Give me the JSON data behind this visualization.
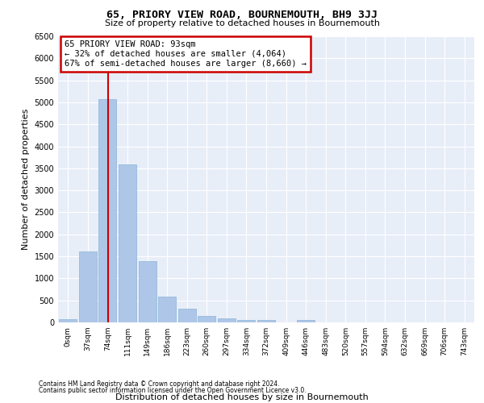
{
  "title": "65, PRIORY VIEW ROAD, BOURNEMOUTH, BH9 3JJ",
  "subtitle": "Size of property relative to detached houses in Bournemouth",
  "xlabel": "Distribution of detached houses by size in Bournemouth",
  "ylabel": "Number of detached properties",
  "footer_line1": "Contains HM Land Registry data © Crown copyright and database right 2024.",
  "footer_line2": "Contains public sector information licensed under the Open Government Licence v3.0.",
  "annotation_line1": "65 PRIORY VIEW ROAD: 93sqm",
  "annotation_line2": "← 32% of detached houses are smaller (4,064)",
  "annotation_line3": "67% of semi-detached houses are larger (8,660) →",
  "property_size_sqm": 93,
  "bar_color": "#aec6e8",
  "bar_edge_color": "#8ab4d8",
  "marker_color": "#cc0000",
  "background_color": "#e8eef8",
  "categories": [
    "0sqm",
    "37sqm",
    "74sqm",
    "111sqm",
    "149sqm",
    "186sqm",
    "223sqm",
    "260sqm",
    "297sqm",
    "334sqm",
    "372sqm",
    "409sqm",
    "446sqm",
    "483sqm",
    "520sqm",
    "557sqm",
    "594sqm",
    "632sqm",
    "669sqm",
    "706sqm",
    "743sqm"
  ],
  "values": [
    75,
    1620,
    5080,
    3580,
    1400,
    590,
    310,
    155,
    90,
    55,
    60,
    0,
    55,
    0,
    0,
    0,
    0,
    0,
    0,
    0,
    0
  ],
  "ylim": [
    0,
    6500
  ],
  "yticks": [
    0,
    500,
    1000,
    1500,
    2000,
    2500,
    3000,
    3500,
    4000,
    4500,
    5000,
    5500,
    6000,
    6500
  ],
  "title_fontsize": 9.5,
  "subtitle_fontsize": 8,
  "ylabel_fontsize": 8,
  "xlabel_fontsize": 8,
  "tick_fontsize": 7,
  "annotation_fontsize": 7.5,
  "footer_fontsize": 5.5
}
